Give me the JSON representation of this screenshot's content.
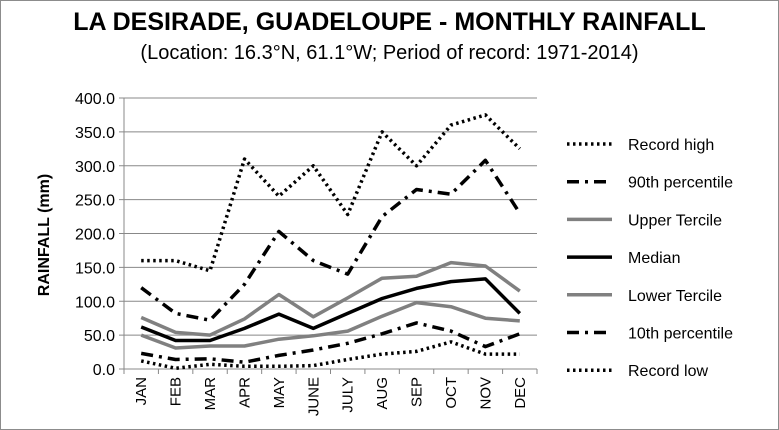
{
  "chart_data": {
    "type": "line",
    "title": "LA DESIRADE, GUADELOUPE - MONTHLY RAINFALL",
    "subtitle": "(Location: 16.3°N, 61.1°W; Period of record: 1971-2014)",
    "xlabel": "",
    "ylabel": "RAINFALL (mm)",
    "ylim": [
      0,
      400
    ],
    "yticks": [
      "0.0",
      "50.0",
      "100.0",
      "150.0",
      "200.0",
      "250.0",
      "300.0",
      "350.0",
      "400.0"
    ],
    "grid": true,
    "legend_position": "right",
    "categories": [
      "JAN",
      "FEB",
      "MAR",
      "APR",
      "MAY",
      "JUNE",
      "JULY",
      "AUG",
      "SEP",
      "OCT",
      "NOV",
      "DEC"
    ],
    "series": [
      {
        "name": "Record high",
        "color": "#000000",
        "style": "dotted",
        "values": [
          160,
          160,
          145,
          310,
          255,
          300,
          228,
          350,
          300,
          360,
          375,
          325
        ]
      },
      {
        "name": "90th percentile",
        "color": "#000000",
        "style": "dashdot",
        "values": [
          120,
          82,
          72,
          125,
          203,
          160,
          140,
          225,
          265,
          258,
          308,
          230
        ]
      },
      {
        "name": "Upper Tercile",
        "color": "#808080",
        "style": "solid",
        "values": [
          76,
          54,
          50,
          74,
          110,
          77,
          105,
          134,
          137,
          157,
          152,
          115
        ]
      },
      {
        "name": "Median",
        "color": "#000000",
        "style": "solid",
        "values": [
          62,
          42,
          42,
          60,
          81,
          60,
          82,
          104,
          119,
          129,
          133,
          82
        ]
      },
      {
        "name": "Lower Tercile",
        "color": "#808080",
        "style": "solid",
        "values": [
          50,
          31,
          34,
          34,
          44,
          49,
          56,
          78,
          98,
          92,
          75,
          71
        ]
      },
      {
        "name": "10th percentile",
        "color": "#000000",
        "style": "dashdot",
        "values": [
          23,
          14,
          15,
          10,
          20,
          28,
          38,
          52,
          68,
          56,
          33,
          52
        ]
      },
      {
        "name": "Record low",
        "color": "#000000",
        "style": "dotted",
        "values": [
          12,
          1,
          7,
          4,
          4,
          5,
          14,
          22,
          26,
          40,
          22,
          22
        ]
      }
    ]
  }
}
